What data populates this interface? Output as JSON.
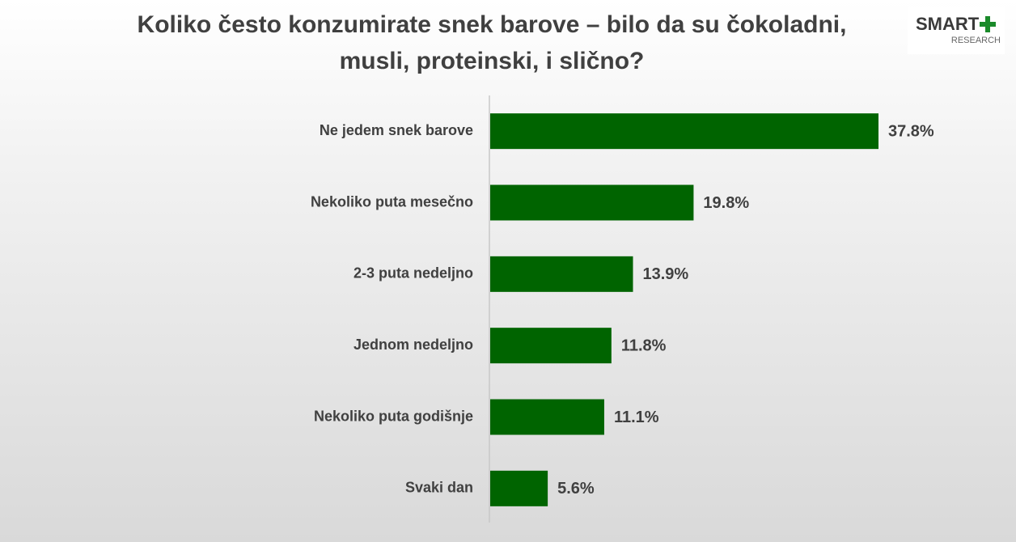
{
  "chart_data": {
    "type": "hbar",
    "title": [
      "Koliko često konzumirate snek barove – bilo da su čokoladni,",
      "musli, proteinski, i slično?"
    ],
    "categories": [
      "Ne jedem snek barove",
      "Nekoliko puta mesečno",
      "2-3 puta nedeljno",
      "Jednom nedeljno",
      "Nekoliko puta godišnje",
      "Svaki dan"
    ],
    "values": [
      37.8,
      19.8,
      13.9,
      11.8,
      11.1,
      5.6
    ],
    "value_labels": [
      "37.8%",
      "19.8%",
      "13.9%",
      "11.8%",
      "11.1%",
      "5.6%"
    ],
    "color": "#006400"
  },
  "logo": {
    "name": "SMART",
    "subtitle": "RESEARCH"
  }
}
